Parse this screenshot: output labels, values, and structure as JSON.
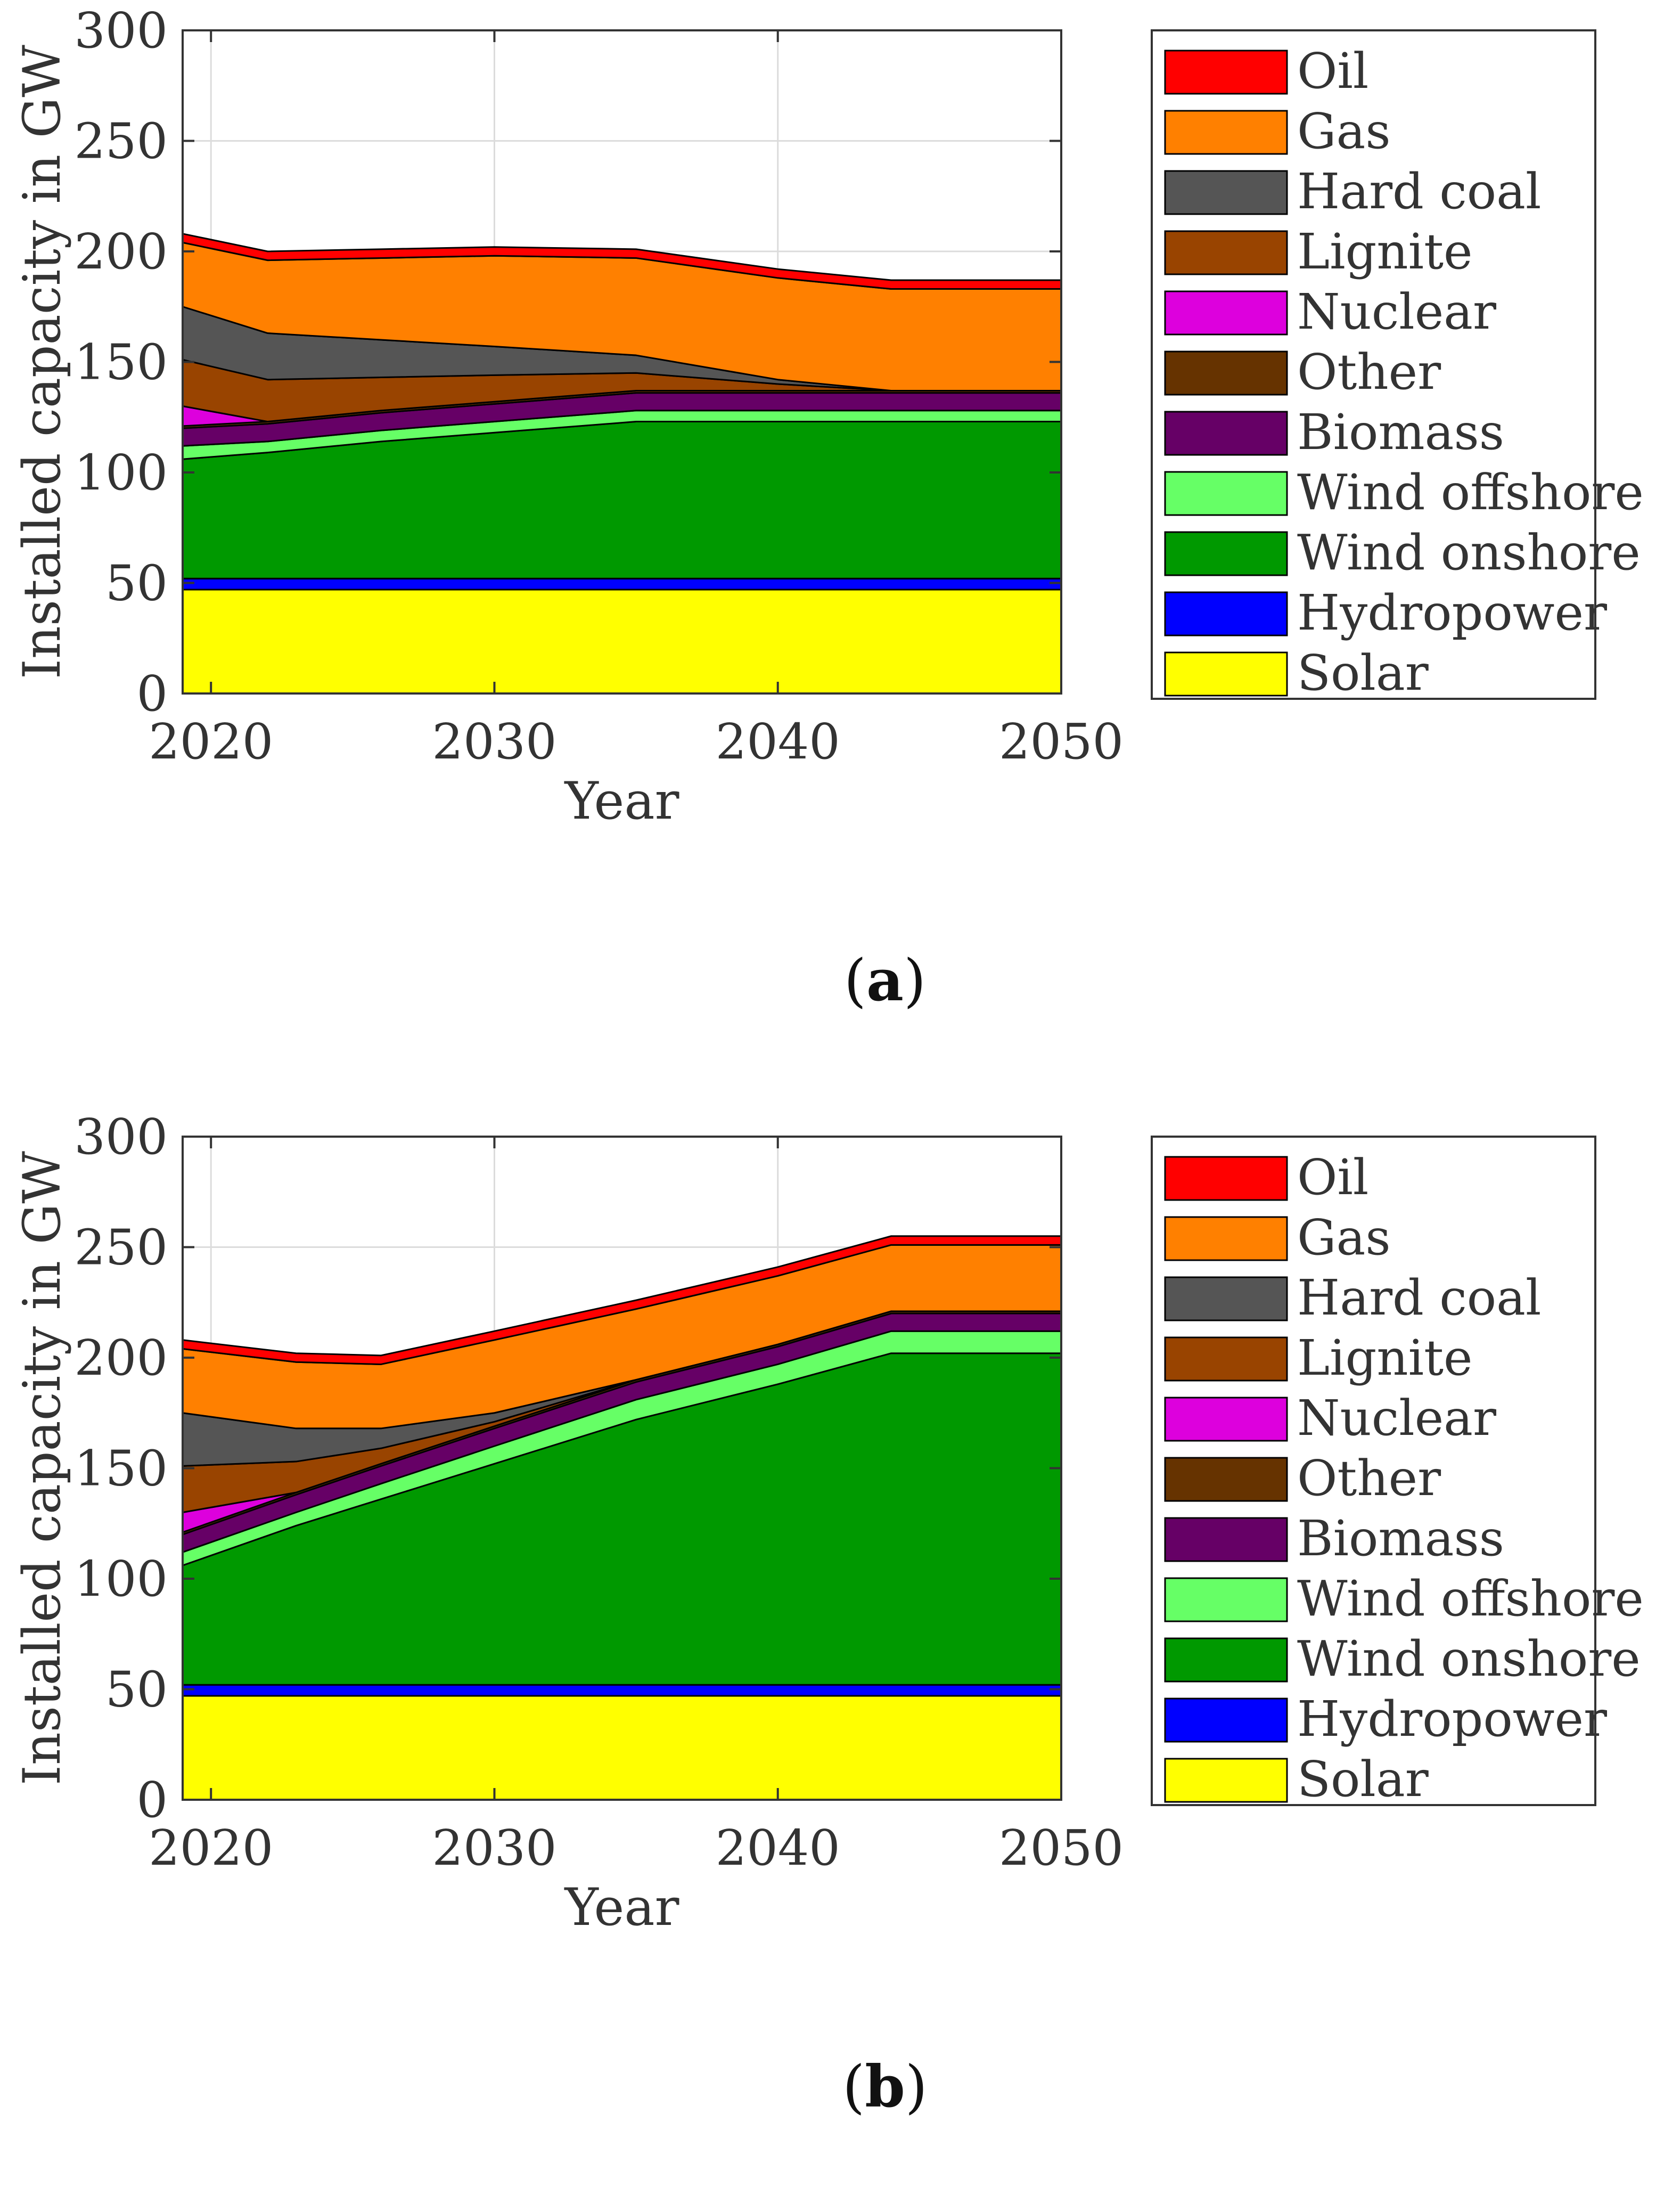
{
  "chart_data": [
    {
      "type": "area",
      "stacked": true,
      "panel_label": "a",
      "xlabel": "Year",
      "ylabel": "Installed capacity in GW",
      "xlim": [
        2019,
        2050
      ],
      "ylim": [
        0,
        300
      ],
      "xticks": [
        "2020",
        "2030",
        "2040",
        "2050"
      ],
      "yticks": [
        "0",
        "50",
        "100",
        "150",
        "200",
        "250",
        "300"
      ],
      "grid": true,
      "legend_position": "right",
      "x": [
        2019,
        2022,
        2026,
        2030,
        2035,
        2040,
        2044,
        2050
      ],
      "series": [
        {
          "name": "Solar",
          "color": "#ffff00",
          "values": [
            47,
            47,
            47,
            47,
            47,
            47,
            47,
            47
          ]
        },
        {
          "name": "Hydropower",
          "color": "#0000ff",
          "values": [
            5,
            5,
            5,
            5,
            5,
            5,
            5,
            5
          ]
        },
        {
          "name": "Wind onshore",
          "color": "#009900",
          "values": [
            54,
            57,
            62,
            66,
            71,
            71,
            71,
            71
          ]
        },
        {
          "name": "Wind offshore",
          "color": "#66ff66",
          "values": [
            6,
            5,
            5,
            5,
            5,
            5,
            5,
            5
          ]
        },
        {
          "name": "Biomass",
          "color": "#660066",
          "values": [
            8,
            8,
            8,
            8,
            8,
            8,
            8,
            8
          ]
        },
        {
          "name": "Other",
          "color": "#663300",
          "values": [
            1,
            1,
            1,
            1,
            1,
            1,
            1,
            1
          ]
        },
        {
          "name": "Nuclear",
          "color": "#dd00dd",
          "values": [
            9,
            0,
            0,
            0,
            0,
            0,
            0,
            0
          ]
        },
        {
          "name": "Lignite",
          "color": "#994400",
          "values": [
            21,
            19,
            15,
            12,
            8,
            3,
            0,
            0
          ]
        },
        {
          "name": "Hard coal",
          "color": "#555555",
          "values": [
            24,
            21,
            17,
            13,
            8,
            2,
            0,
            0
          ]
        },
        {
          "name": "Gas",
          "color": "#ff8000",
          "values": [
            29,
            33,
            37,
            41,
            44,
            46,
            46,
            46
          ]
        },
        {
          "name": "Oil",
          "color": "#ff0000",
          "values": [
            4,
            4,
            4,
            4,
            4,
            4,
            4,
            4
          ]
        }
      ]
    },
    {
      "type": "area",
      "stacked": true,
      "panel_label": "b",
      "xlabel": "Year",
      "ylabel": "Installed capacity in GW",
      "xlim": [
        2019,
        2050
      ],
      "ylim": [
        0,
        300
      ],
      "xticks": [
        "2020",
        "2030",
        "2040",
        "2050"
      ],
      "yticks": [
        "0",
        "50",
        "100",
        "150",
        "200",
        "250",
        "300"
      ],
      "grid": true,
      "legend_position": "right",
      "x": [
        2019,
        2023,
        2026,
        2030,
        2035,
        2040,
        2044,
        2050
      ],
      "series": [
        {
          "name": "Solar",
          "color": "#ffff00",
          "values": [
            47,
            47,
            47,
            47,
            47,
            47,
            47,
            47
          ]
        },
        {
          "name": "Hydropower",
          "color": "#0000ff",
          "values": [
            5,
            5,
            5,
            5,
            5,
            5,
            5,
            5
          ]
        },
        {
          "name": "Wind onshore",
          "color": "#009900",
          "values": [
            54,
            72,
            84,
            100,
            120,
            136,
            150,
            150
          ]
        },
        {
          "name": "Wind offshore",
          "color": "#66ff66",
          "values": [
            6,
            6,
            7,
            8,
            9,
            9,
            10,
            10
          ]
        },
        {
          "name": "Biomass",
          "color": "#660066",
          "values": [
            8,
            8,
            8,
            8,
            8,
            8,
            8,
            8
          ]
        },
        {
          "name": "Other",
          "color": "#663300",
          "values": [
            1,
            1,
            1,
            1,
            1,
            1,
            1,
            1
          ]
        },
        {
          "name": "Nuclear",
          "color": "#dd00dd",
          "values": [
            9,
            0,
            0,
            0,
            0,
            0,
            0,
            0
          ]
        },
        {
          "name": "Lignite",
          "color": "#994400",
          "values": [
            21,
            14,
            7,
            2,
            0,
            0,
            0,
            0
          ]
        },
        {
          "name": "Hard coal",
          "color": "#555555",
          "values": [
            24,
            15,
            9,
            4,
            0,
            0,
            0,
            0
          ]
        },
        {
          "name": "Gas",
          "color": "#ff8000",
          "values": [
            29,
            30,
            29,
            33,
            32,
            31,
            30,
            30
          ]
        },
        {
          "name": "Oil",
          "color": "#ff0000",
          "values": [
            4,
            4,
            4,
            4,
            4,
            4,
            4,
            4
          ]
        }
      ]
    }
  ]
}
